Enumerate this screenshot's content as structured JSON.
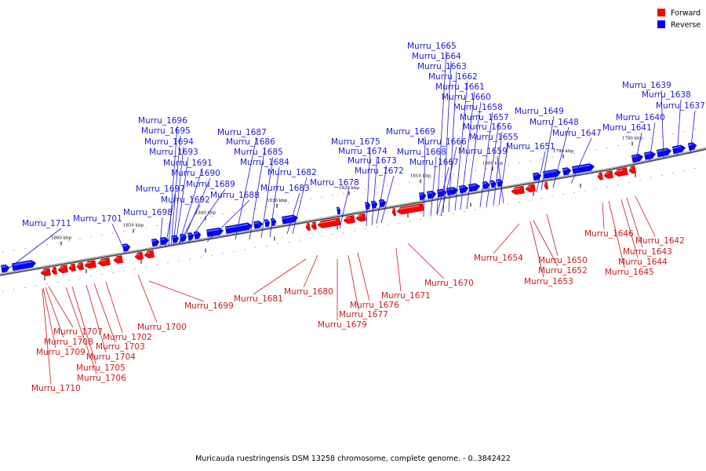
{
  "caption": "Muricauda ruestringensis DSM 13258 chromosome, complete genome. - 0..3842422",
  "legend": [
    {
      "label": "Forward",
      "color": "#ff0000"
    },
    {
      "label": "Reverse",
      "color": "#0000ff"
    }
  ],
  "colors": {
    "forward": "#ff0000",
    "reverse": "#0000ff",
    "forward_label": "#cc1a1a",
    "reverse_label": "#1a1ad8",
    "backbone": "#808080"
  },
  "scale_ticks": [
    "1860 kbp",
    "1850 kbp",
    "1840 kbp",
    "1830 kbp",
    "1820 kbp",
    "1810 kbp",
    "1800 kbp",
    "1790 kbp",
    "1780 kbp"
  ],
  "reverse_genes": [
    "Murru_1711",
    "Murru_1701",
    "Murru_1698",
    "Murru_1697",
    "Murru_1696",
    "Murru_1695",
    "Murru_1694",
    "Murru_1693",
    "Murru_1692",
    "Murru_1691",
    "Murru_1690",
    "Murru_1689",
    "Murru_1688",
    "Murru_1687",
    "Murru_1686",
    "Murru_1685",
    "Murru_1684",
    "Murru_1683",
    "Murru_1682",
    "Murru_1678",
    "Murru_1675",
    "Murru_1674",
    "Murru_1673",
    "Murru_1672",
    "Murru_1669",
    "Murru_1668",
    "Murru_1667",
    "Murru_1666",
    "Murru_1665",
    "Murru_1664",
    "Murru_1663",
    "Murru_1662",
    "Murru_1661",
    "Murru_1660",
    "Murru_1658",
    "Murru_1657",
    "Murru_1656",
    "Murru_1655",
    "Murru_1659",
    "Murru_1651",
    "Murru_1649",
    "Murru_1648",
    "Murru_1647",
    "Murru_1641",
    "Murru_1640",
    "Murru_1639",
    "Murru_1638",
    "Murru_1637"
  ],
  "forward_genes": [
    "Murru_1707",
    "Murru_1708",
    "Murru_1709",
    "Murru_1710",
    "Murru_1706",
    "Murru_1705",
    "Murru_1704",
    "Murru_1703",
    "Murru_1702",
    "Murru_1700",
    "Murru_1699",
    "Murru_1681",
    "Murru_1680",
    "Murru_1679",
    "Murru_1677",
    "Murru_1676",
    "Murru_1671",
    "Murru_1670",
    "Murru_1654",
    "Murru_1653",
    "Murru_1652",
    "Murru_1650",
    "Murru_1646",
    "Murru_1645",
    "Murru_1644",
    "Murru_1643",
    "Murru_1642"
  ]
}
